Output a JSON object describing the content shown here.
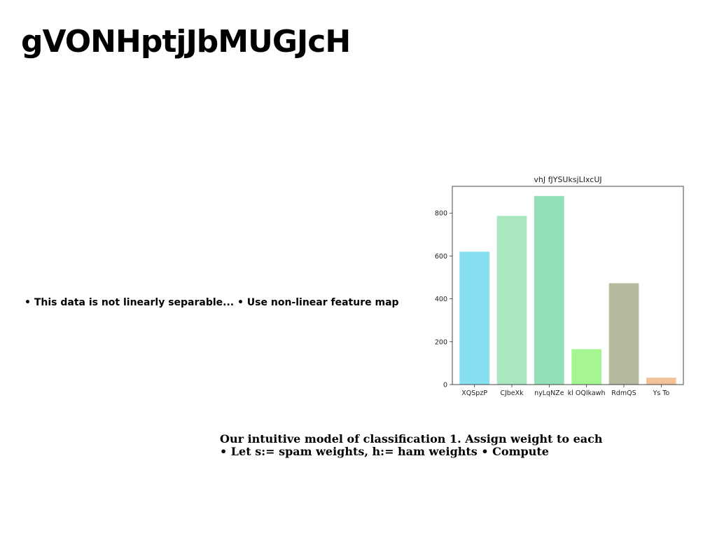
{
  "slide": {
    "title": "gVONHptjJbMUGJcH",
    "bullet_text": "• This data is not linearly separable... • Use non-linear feature map",
    "caption_line1": "Our intuitive model of classification 1. Assign weight to each",
    "caption_line2": "• Let s:= spam weights, h:= ham weights • Compute"
  },
  "chart_data": {
    "type": "bar",
    "title": "vhJ fJYSUksjLIxcUJ",
    "xlabel": "",
    "ylabel": "",
    "categories": [
      "XQSpzP",
      "CJbeXk",
      "nyLqNZe",
      "kl OQIkawh",
      "RdmQS",
      "Ys To"
    ],
    "values": [
      620,
      787,
      880,
      165,
      473,
      32
    ],
    "colors": [
      "#87dff2",
      "#aae6c0",
      "#93e0b8",
      "#a5f592",
      "#b5ba9f",
      "#f2c299"
    ],
    "yticks": [
      0,
      200,
      400,
      600,
      800
    ],
    "ylim": [
      0,
      925
    ],
    "grid": false,
    "legend": "none"
  }
}
